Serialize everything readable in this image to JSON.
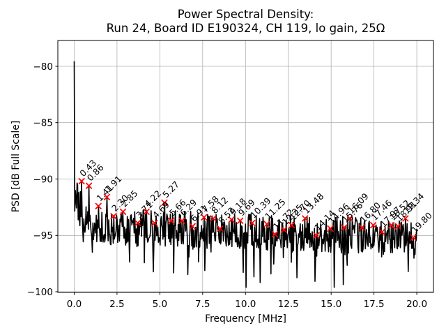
{
  "title": {
    "line1": "Power Spectral Density:",
    "line2": "Run 24, Board ID E190324, CH 119, lo gain, 25Ω"
  },
  "axes": {
    "xlabel": "Frequency [MHz]",
    "ylabel": "PSD [dB Full Scale]",
    "xticks": [
      {
        "v": 0.0,
        "label": "0.0"
      },
      {
        "v": 2.5,
        "label": "2.5"
      },
      {
        "v": 5.0,
        "label": "5.0"
      },
      {
        "v": 7.5,
        "label": "7.5"
      },
      {
        "v": 10.0,
        "label": "10.0"
      },
      {
        "v": 12.5,
        "label": "12.5"
      },
      {
        "v": 15.0,
        "label": "15.0"
      },
      {
        "v": 17.5,
        "label": "17.5"
      },
      {
        "v": 20.0,
        "label": "20.0"
      }
    ],
    "yticks": [
      {
        "v": -80,
        "label": "−80"
      },
      {
        "v": -85,
        "label": "−85"
      },
      {
        "v": -90,
        "label": "−90"
      },
      {
        "v": -95,
        "label": "−95"
      },
      {
        "v": -100,
        "label": "−100"
      }
    ]
  },
  "chart_data": {
    "type": "line",
    "title": "Power Spectral Density: Run 24, Board ID E190324, CH 119, lo gain, 25Ω",
    "xlabel": "Frequency [MHz]",
    "ylabel": "PSD [dB Full Scale]",
    "xlim": [
      -0.956,
      20.974
    ],
    "ylim": [
      -100.06,
      -77.71
    ],
    "grid": true,
    "grid_color": "#b0b0b0",
    "line_color": "#000000",
    "marker_color": "#ff0000",
    "marker_style": "x",
    "dc_spike": {
      "freq": 0.0,
      "psd": -79.55
    },
    "noise_floor_db": -95.0,
    "peaks": [
      {
        "freq": 0.43,
        "psd": -90.2,
        "label": "0.43"
      },
      {
        "freq": 0.86,
        "psd": -90.6,
        "label": "0.86"
      },
      {
        "freq": 1.41,
        "psd": -92.4,
        "label": "1.41"
      },
      {
        "freq": 1.91,
        "psd": -91.6,
        "label": "1.91"
      },
      {
        "freq": 2.3,
        "psd": -93.3,
        "label": "2.30"
      },
      {
        "freq": 2.85,
        "psd": -92.9,
        "label": "2.85"
      },
      {
        "freq": 3.71,
        "psd": -93.9,
        "label": "3.71"
      },
      {
        "freq": 4.22,
        "psd": -92.9,
        "label": "4.22"
      },
      {
        "freq": 4.69,
        "psd": -93.9,
        "label": "4.69"
      },
      {
        "freq": 5.27,
        "psd": -92.1,
        "label": "5.27"
      },
      {
        "freq": 5.66,
        "psd": -93.7,
        "label": "5.66"
      },
      {
        "freq": 6.29,
        "psd": -93.7,
        "label": "6.29"
      },
      {
        "freq": 6.91,
        "psd": -94.2,
        "label": "6.91"
      },
      {
        "freq": 7.58,
        "psd": -93.4,
        "label": "7.58"
      },
      {
        "freq": 8.12,
        "psd": -93.5,
        "label": "8.12"
      },
      {
        "freq": 8.52,
        "psd": -94.4,
        "label": "8.52"
      },
      {
        "freq": 9.18,
        "psd": -93.6,
        "label": "9.18"
      },
      {
        "freq": 9.69,
        "psd": -93.7,
        "label": "9.69"
      },
      {
        "freq": 10.39,
        "psd": -93.9,
        "label": "10.39"
      },
      {
        "freq": 11.25,
        "psd": -94.0,
        "label": "11.25"
      },
      {
        "freq": 11.72,
        "psd": -94.9,
        "label": "11.72"
      },
      {
        "freq": 12.25,
        "psd": -94.5,
        "label": "12.25"
      },
      {
        "freq": 12.7,
        "psd": -94.1,
        "label": "12.70"
      },
      {
        "freq": 13.48,
        "psd": -93.5,
        "label": "13.48"
      },
      {
        "freq": 14.14,
        "psd": -95.0,
        "label": "14.14"
      },
      {
        "freq": 14.96,
        "psd": -94.4,
        "label": "14.96"
      },
      {
        "freq": 15.76,
        "psd": -94.3,
        "label": "15.76"
      },
      {
        "freq": 16.09,
        "psd": -93.5,
        "label": "16.09"
      },
      {
        "freq": 16.8,
        "psd": -94.3,
        "label": "16.80"
      },
      {
        "freq": 17.46,
        "psd": -94.1,
        "label": "17.46"
      },
      {
        "freq": 17.97,
        "psd": -94.7,
        "label": "17.97"
      },
      {
        "freq": 18.52,
        "psd": -94.1,
        "label": "18.52"
      },
      {
        "freq": 18.91,
        "psd": -94.2,
        "label": "18.91"
      },
      {
        "freq": 19.34,
        "psd": -93.5,
        "label": "19.34"
      },
      {
        "freq": 19.8,
        "psd": -95.2,
        "label": "19.80"
      }
    ]
  }
}
